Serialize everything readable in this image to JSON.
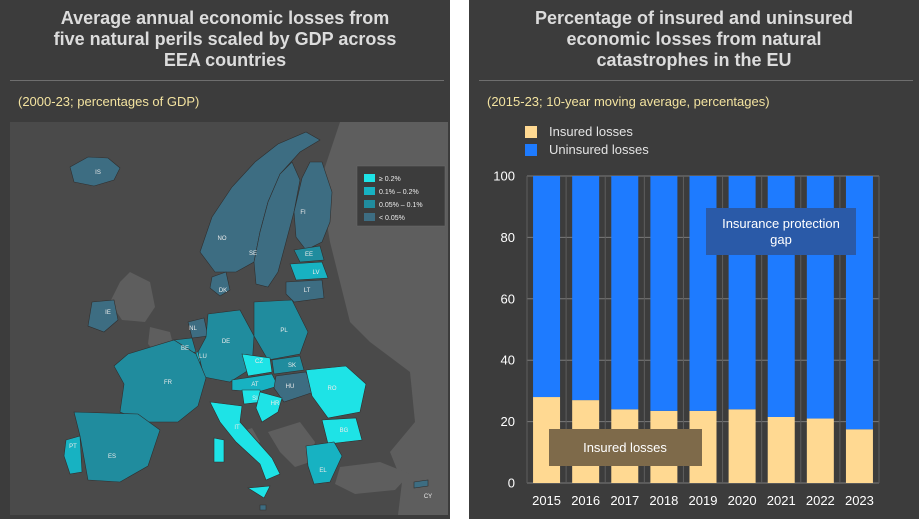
{
  "colors": {
    "panel_bg": "#3c3c3c",
    "sea": "#4a4a4a",
    "non_eea_land": "#5e5e5e",
    "insured": "#ffd992",
    "uninsured": "#1e7bff",
    "class_ge_0_2": "#1ee3e6",
    "class_0_1_0_2": "#17b2c2",
    "class_0_05_0_1": "#208c9e",
    "class_lt_0_05": "#3d6d82"
  },
  "left_panel": {
    "title_lines": [
      "Average annual economic losses from",
      "five natural perils scaled by GDP across",
      "EEA countries"
    ],
    "subtitle": "(2000-23; percentages of GDP)",
    "legend": [
      {
        "label": "≥ 0.2%",
        "class": "class_ge_0_2"
      },
      {
        "label": "0.1% – 0.2%",
        "class": "class_0_1_0_2"
      },
      {
        "label": "0.05% – 0.1%",
        "class": "class_0_05_0_1"
      },
      {
        "label": "< 0.05%",
        "class": "class_lt_0_05"
      }
    ],
    "countries": [
      {
        "code": "IS",
        "class": "class_lt_0_05"
      },
      {
        "code": "NO",
        "class": "class_lt_0_05"
      },
      {
        "code": "SE",
        "class": "class_lt_0_05"
      },
      {
        "code": "FI",
        "class": "class_lt_0_05"
      },
      {
        "code": "EE",
        "class": "class_0_05_0_1"
      },
      {
        "code": "LV",
        "class": "class_0_1_0_2"
      },
      {
        "code": "LT",
        "class": "class_lt_0_05"
      },
      {
        "code": "DK",
        "class": "class_lt_0_05"
      },
      {
        "code": "IE",
        "class": "class_lt_0_05"
      },
      {
        "code": "NL",
        "class": "class_lt_0_05"
      },
      {
        "code": "BE",
        "class": "class_0_05_0_1"
      },
      {
        "code": "LU",
        "class": "class_0_1_0_2"
      },
      {
        "code": "DE",
        "class": "class_0_05_0_1"
      },
      {
        "code": "PL",
        "class": "class_0_05_0_1"
      },
      {
        "code": "CZ",
        "class": "class_ge_0_2"
      },
      {
        "code": "SK",
        "class": "class_0_05_0_1"
      },
      {
        "code": "FR",
        "class": "class_0_05_0_1"
      },
      {
        "code": "AT",
        "class": "class_0_1_0_2"
      },
      {
        "code": "HU",
        "class": "class_lt_0_05"
      },
      {
        "code": "RO",
        "class": "class_ge_0_2"
      },
      {
        "code": "SI",
        "class": "class_ge_0_2"
      },
      {
        "code": "HR",
        "class": "class_ge_0_2"
      },
      {
        "code": "PT",
        "class": "class_0_1_0_2"
      },
      {
        "code": "ES",
        "class": "class_0_05_0_1"
      },
      {
        "code": "IT",
        "class": "class_ge_0_2"
      },
      {
        "code": "BG",
        "class": "class_ge_0_2"
      },
      {
        "code": "EL",
        "class": "class_0_1_0_2"
      },
      {
        "code": "MT",
        "class": "class_lt_0_05"
      },
      {
        "code": "CY",
        "class": "class_lt_0_05"
      }
    ]
  },
  "right_panel": {
    "title_lines": [
      "Percentage of insured and uninsured",
      "economic losses from natural",
      "catastrophes in the EU"
    ],
    "subtitle": "(2015-23; 10-year moving average, percentages)"
  },
  "chart_data": {
    "type": "bar",
    "stacked": true,
    "categories": [
      "2015",
      "2016",
      "2017",
      "2018",
      "2019",
      "2020",
      "2021",
      "2022",
      "2023"
    ],
    "series": [
      {
        "name": "Insured losses",
        "values": [
          28,
          27,
          24,
          23.5,
          23.5,
          24,
          21.5,
          21,
          17.5
        ]
      },
      {
        "name": "Uninsured losses",
        "values": [
          72,
          73,
          76,
          76.5,
          76.5,
          76,
          78.5,
          79,
          82.5
        ]
      }
    ],
    "ylim": [
      0,
      100
    ],
    "yticks": [
      0,
      20,
      40,
      60,
      80,
      100
    ],
    "grid": true,
    "legend_position": "top-left",
    "annotations": [
      {
        "text": "Insurance protection gap",
        "region": "uninsured"
      },
      {
        "text": "Insured losses",
        "region": "insured"
      }
    ]
  }
}
